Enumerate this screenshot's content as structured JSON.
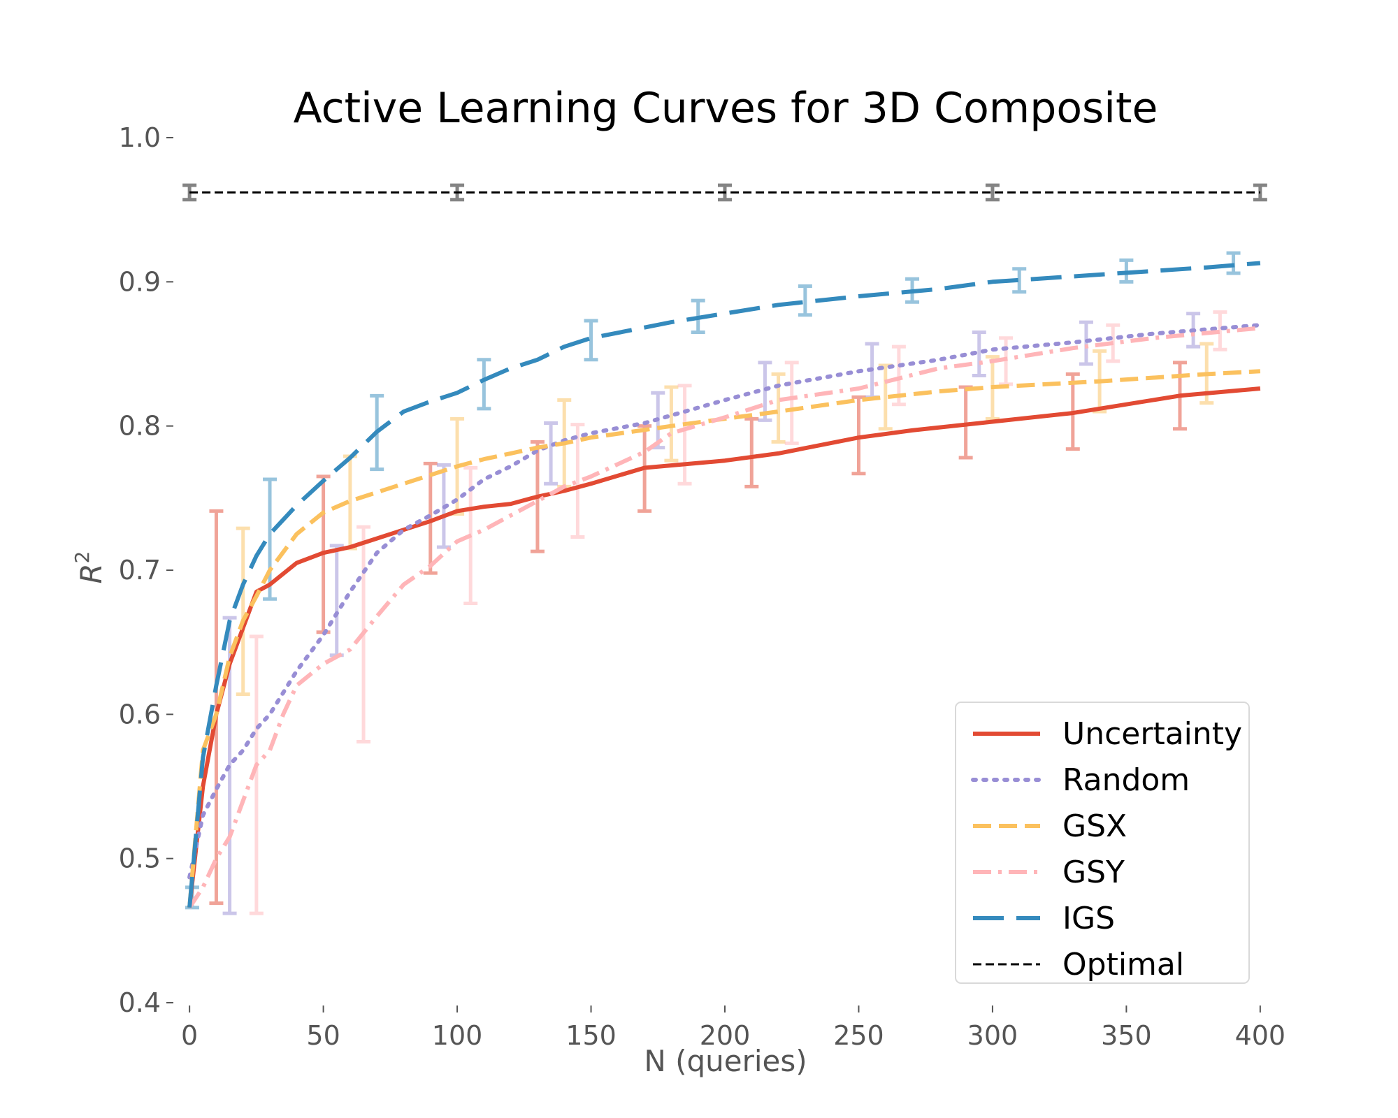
{
  "chart_data": {
    "type": "line",
    "title": "Active Learning Curves for 3D Composite",
    "xlabel": "N (queries)",
    "ylabel": "R",
    "ylabel_superscript": "2",
    "xlim": [
      -5,
      405
    ],
    "ylim": [
      0.4,
      1.0
    ],
    "xticks": [
      0,
      50,
      100,
      150,
      200,
      250,
      300,
      350,
      400
    ],
    "yticks": [
      0.4,
      0.5,
      0.6,
      0.7,
      0.8,
      0.9,
      1.0
    ],
    "grid": false,
    "legend_position": "lower-right",
    "series": [
      {
        "name": "Uncertainty",
        "color": "#E24A33",
        "style": "solid",
        "x": [
          0,
          5,
          10,
          15,
          20,
          25,
          30,
          40,
          50,
          60,
          70,
          80,
          90,
          100,
          110,
          120,
          130,
          140,
          150,
          170,
          200,
          220,
          250,
          270,
          300,
          330,
          370,
          400
        ],
        "y": [
          0.466,
          0.55,
          0.6,
          0.635,
          0.66,
          0.685,
          0.69,
          0.705,
          0.712,
          0.716,
          0.722,
          0.728,
          0.734,
          0.741,
          0.744,
          0.746,
          0.751,
          0.755,
          0.76,
          0.771,
          0.776,
          0.781,
          0.792,
          0.797,
          0.803,
          0.809,
          0.821,
          0.826
        ],
        "error_bars": [
          {
            "x": 10,
            "low": 0.469,
            "high": 0.741
          },
          {
            "x": 50,
            "low": 0.657,
            "high": 0.765
          },
          {
            "x": 90,
            "low": 0.698,
            "high": 0.774
          },
          {
            "x": 130,
            "low": 0.713,
            "high": 0.789
          },
          {
            "x": 170,
            "low": 0.741,
            "high": 0.8
          },
          {
            "x": 210,
            "low": 0.758,
            "high": 0.805
          },
          {
            "x": 250,
            "low": 0.767,
            "high": 0.82
          },
          {
            "x": 290,
            "low": 0.778,
            "high": 0.827
          },
          {
            "x": 330,
            "low": 0.784,
            "high": 0.836
          },
          {
            "x": 370,
            "low": 0.798,
            "high": 0.844
          }
        ]
      },
      {
        "name": "Random",
        "color": "#988ED5",
        "style": "dotted",
        "x": [
          0,
          5,
          10,
          15,
          20,
          25,
          30,
          40,
          50,
          60,
          70,
          80,
          90,
          100,
          110,
          120,
          130,
          140,
          150,
          170,
          200,
          220,
          250,
          280,
          300,
          330,
          360,
          400
        ],
        "y": [
          0.487,
          0.53,
          0.548,
          0.565,
          0.575,
          0.59,
          0.6,
          0.63,
          0.655,
          0.685,
          0.712,
          0.728,
          0.738,
          0.749,
          0.763,
          0.772,
          0.783,
          0.79,
          0.795,
          0.802,
          0.818,
          0.828,
          0.838,
          0.846,
          0.853,
          0.858,
          0.864,
          0.87
        ],
        "error_bars": [
          {
            "x": 15,
            "low": 0.462,
            "high": 0.667
          },
          {
            "x": 55,
            "low": 0.641,
            "high": 0.717
          },
          {
            "x": 95,
            "low": 0.716,
            "high": 0.773
          },
          {
            "x": 135,
            "low": 0.76,
            "high": 0.802
          },
          {
            "x": 175,
            "low": 0.785,
            "high": 0.823
          },
          {
            "x": 215,
            "low": 0.804,
            "high": 0.844
          },
          {
            "x": 255,
            "low": 0.82,
            "high": 0.857
          },
          {
            "x": 295,
            "low": 0.835,
            "high": 0.865
          },
          {
            "x": 335,
            "low": 0.843,
            "high": 0.872
          },
          {
            "x": 375,
            "low": 0.855,
            "high": 0.878
          }
        ]
      },
      {
        "name": "GSX",
        "color": "#FBC15E",
        "style": "dashed",
        "x": [
          0,
          5,
          10,
          15,
          20,
          25,
          30,
          40,
          50,
          60,
          70,
          80,
          90,
          100,
          110,
          120,
          130,
          140,
          150,
          180,
          200,
          220,
          250,
          280,
          300,
          340,
          380,
          400
        ],
        "y": [
          0.466,
          0.575,
          0.6,
          0.64,
          0.665,
          0.682,
          0.7,
          0.725,
          0.74,
          0.748,
          0.754,
          0.76,
          0.766,
          0.772,
          0.777,
          0.781,
          0.785,
          0.788,
          0.792,
          0.8,
          0.805,
          0.81,
          0.818,
          0.824,
          0.827,
          0.831,
          0.836,
          0.838
        ],
        "error_bars": [
          {
            "x": 20,
            "low": 0.614,
            "high": 0.729
          },
          {
            "x": 60,
            "low": 0.715,
            "high": 0.779
          },
          {
            "x": 100,
            "low": 0.739,
            "high": 0.805
          },
          {
            "x": 140,
            "low": 0.758,
            "high": 0.818
          },
          {
            "x": 180,
            "low": 0.776,
            "high": 0.827
          },
          {
            "x": 220,
            "low": 0.789,
            "high": 0.836
          },
          {
            "x": 260,
            "low": 0.798,
            "high": 0.842
          },
          {
            "x": 300,
            "low": 0.805,
            "high": 0.848
          },
          {
            "x": 340,
            "low": 0.81,
            "high": 0.852
          },
          {
            "x": 380,
            "low": 0.816,
            "high": 0.857
          }
        ]
      },
      {
        "name": "GSY",
        "color": "#FFB5B8",
        "style": "dashdot",
        "x": [
          0,
          5,
          10,
          15,
          20,
          25,
          30,
          35,
          40,
          50,
          60,
          70,
          80,
          90,
          100,
          110,
          120,
          130,
          140,
          150,
          170,
          180,
          200,
          220,
          250,
          280,
          300,
          330,
          360,
          400
        ],
        "y": [
          0.466,
          0.48,
          0.5,
          0.515,
          0.54,
          0.565,
          0.575,
          0.6,
          0.62,
          0.635,
          0.645,
          0.668,
          0.69,
          0.703,
          0.72,
          0.728,
          0.738,
          0.748,
          0.758,
          0.765,
          0.782,
          0.795,
          0.806,
          0.818,
          0.826,
          0.84,
          0.845,
          0.854,
          0.861,
          0.868
        ],
        "error_bars": [
          {
            "x": 25,
            "low": 0.462,
            "high": 0.654
          },
          {
            "x": 65,
            "low": 0.581,
            "high": 0.73
          },
          {
            "x": 105,
            "low": 0.677,
            "high": 0.771
          },
          {
            "x": 145,
            "low": 0.723,
            "high": 0.801
          },
          {
            "x": 185,
            "low": 0.76,
            "high": 0.828
          },
          {
            "x": 225,
            "low": 0.788,
            "high": 0.844
          },
          {
            "x": 265,
            "low": 0.815,
            "high": 0.855
          },
          {
            "x": 305,
            "low": 0.829,
            "high": 0.861
          },
          {
            "x": 345,
            "low": 0.845,
            "high": 0.87
          },
          {
            "x": 385,
            "low": 0.853,
            "high": 0.879
          }
        ]
      },
      {
        "name": "IGS",
        "color": "#348ABD",
        "style": "longdash",
        "x": [
          0,
          5,
          10,
          15,
          20,
          25,
          30,
          40,
          50,
          60,
          70,
          80,
          90,
          100,
          110,
          120,
          130,
          140,
          150,
          180,
          200,
          220,
          250,
          280,
          300,
          340,
          380,
          400
        ],
        "y": [
          0.466,
          0.57,
          0.62,
          0.665,
          0.69,
          0.71,
          0.725,
          0.745,
          0.762,
          0.778,
          0.796,
          0.81,
          0.817,
          0.823,
          0.832,
          0.84,
          0.846,
          0.855,
          0.861,
          0.872,
          0.878,
          0.884,
          0.89,
          0.895,
          0.9,
          0.905,
          0.91,
          0.913
        ],
        "error_bars": [
          {
            "x": 1,
            "low": 0.466,
            "high": 0.48
          },
          {
            "x": 30,
            "low": 0.68,
            "high": 0.763
          },
          {
            "x": 70,
            "low": 0.77,
            "high": 0.821
          },
          {
            "x": 110,
            "low": 0.812,
            "high": 0.846
          },
          {
            "x": 150,
            "low": 0.846,
            "high": 0.873
          },
          {
            "x": 190,
            "low": 0.865,
            "high": 0.887
          },
          {
            "x": 230,
            "low": 0.877,
            "high": 0.897
          },
          {
            "x": 270,
            "low": 0.886,
            "high": 0.902
          },
          {
            "x": 310,
            "low": 0.893,
            "high": 0.909
          },
          {
            "x": 350,
            "low": 0.9,
            "high": 0.915
          },
          {
            "x": 390,
            "low": 0.906,
            "high": 0.92
          }
        ]
      },
      {
        "name": "Optimal",
        "color": "#000000",
        "style": "thin-dashed",
        "x": [
          0,
          400
        ],
        "y": [
          0.962,
          0.962
        ],
        "error_bars": [
          {
            "x": 0,
            "low": 0.957,
            "high": 0.967
          },
          {
            "x": 100,
            "low": 0.957,
            "high": 0.967
          },
          {
            "x": 200,
            "low": 0.957,
            "high": 0.967
          },
          {
            "x": 300,
            "low": 0.957,
            "high": 0.967
          },
          {
            "x": 400,
            "low": 0.957,
            "high": 0.967
          }
        ]
      }
    ]
  }
}
